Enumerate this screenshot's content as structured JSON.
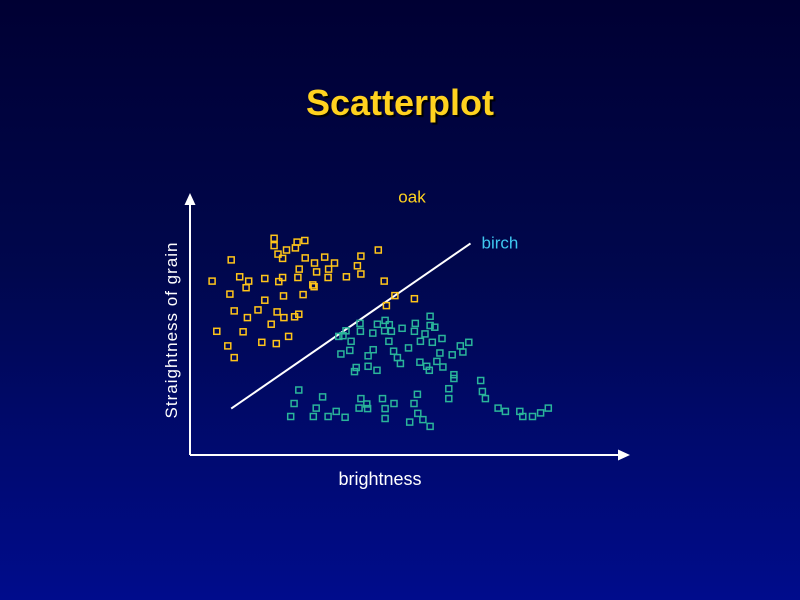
{
  "slide": {
    "title": "Scatterplot"
  },
  "colors": {
    "background_top": "#000033",
    "background_bottom": "#000c8c",
    "title": "#ffd21f",
    "axes": "#ffffff",
    "oak": "#ffc51a",
    "birch": "#2ab59a",
    "oak_label": "#ffd21f",
    "birch_label": "#3fc8f0",
    "divider": "#ffffff"
  },
  "chart_data": {
    "type": "scatter",
    "title": "Scatterplot",
    "xlabel": "brightness",
    "ylabel": "Straightness of grain",
    "axis_ticks": false,
    "grid": false,
    "xlim": [
      0,
      100
    ],
    "ylim": [
      0,
      100
    ],
    "series": [
      {
        "name": "oak",
        "color": "#ffc51a",
        "marker": "square",
        "points": [
          [
            19.8,
            85.0
          ],
          [
            19.8,
            82.1
          ],
          [
            22.7,
            80.4
          ],
          [
            25.2,
            83.5
          ],
          [
            27.0,
            84.1
          ],
          [
            24.8,
            81.2
          ],
          [
            20.7,
            78.8
          ],
          [
            21.8,
            77.1
          ],
          [
            25.7,
            72.9
          ],
          [
            29.3,
            75.3
          ],
          [
            27.1,
            77.3
          ],
          [
            31.7,
            77.6
          ],
          [
            34.0,
            75.3
          ],
          [
            32.6,
            72.9
          ],
          [
            29.8,
            71.8
          ],
          [
            39.4,
            74.2
          ],
          [
            40.2,
            78.0
          ],
          [
            44.3,
            80.4
          ],
          [
            5.2,
            68.2
          ],
          [
            9.7,
            76.5
          ],
          [
            11.7,
            69.9
          ],
          [
            13.8,
            68.2
          ],
          [
            17.6,
            69.2
          ],
          [
            21.8,
            69.6
          ],
          [
            25.4,
            69.6
          ],
          [
            29.2,
            66.0
          ],
          [
            32.5,
            69.6
          ],
          [
            36.8,
            69.9
          ],
          [
            40.2,
            71.0
          ],
          [
            45.7,
            68.2
          ],
          [
            9.4,
            63.1
          ],
          [
            13.2,
            65.6
          ],
          [
            20.9,
            68.0
          ],
          [
            17.6,
            60.7
          ],
          [
            22.0,
            62.4
          ],
          [
            26.6,
            62.9
          ],
          [
            28.9,
            66.7
          ],
          [
            10.4,
            56.5
          ],
          [
            16.0,
            56.9
          ],
          [
            20.5,
            56.1
          ],
          [
            25.6,
            55.2
          ],
          [
            19.1,
            51.3
          ],
          [
            22.1,
            53.9
          ],
          [
            24.6,
            54.2
          ],
          [
            6.3,
            48.5
          ],
          [
            13.5,
            53.9
          ],
          [
            12.5,
            48.3
          ],
          [
            8.9,
            42.8
          ],
          [
            16.9,
            44.2
          ],
          [
            20.3,
            43.7
          ],
          [
            23.2,
            46.5
          ],
          [
            10.4,
            38.2
          ],
          [
            46.2,
            58.6
          ],
          [
            48.2,
            62.5
          ],
          [
            52.8,
            61.3
          ]
        ]
      },
      {
        "name": "birch",
        "color": "#2ab59a",
        "marker": "square",
        "points": [
          [
            35.0,
            46.5
          ],
          [
            40.1,
            48.5
          ],
          [
            43.0,
            47.8
          ],
          [
            45.8,
            48.7
          ],
          [
            52.8,
            48.5
          ],
          [
            55.3,
            47.5
          ],
          [
            56.5,
            50.8
          ],
          [
            54.2,
            44.6
          ],
          [
            57.0,
            44.2
          ],
          [
            59.3,
            45.7
          ],
          [
            57.6,
            50.1
          ],
          [
            56.5,
            54.4
          ],
          [
            53.0,
            51.6
          ],
          [
            40.0,
            51.6
          ],
          [
            44.1,
            51.3
          ],
          [
            45.9,
            52.8
          ],
          [
            46.9,
            51.1
          ],
          [
            47.4,
            48.5
          ],
          [
            49.9,
            49.7
          ],
          [
            46.8,
            44.6
          ],
          [
            36.7,
            48.7
          ],
          [
            36.0,
            46.8
          ],
          [
            37.9,
            44.6
          ],
          [
            35.5,
            39.6
          ],
          [
            37.6,
            41.0
          ],
          [
            43.1,
            41.3
          ],
          [
            41.9,
            38.9
          ],
          [
            47.9,
            40.7
          ],
          [
            48.8,
            38.2
          ],
          [
            51.4,
            42.0
          ],
          [
            54.1,
            36.4
          ],
          [
            41.9,
            34.8
          ],
          [
            38.7,
            32.7
          ],
          [
            39.1,
            34.3
          ],
          [
            44.0,
            33.2
          ],
          [
            49.5,
            35.9
          ],
          [
            55.7,
            34.8
          ],
          [
            58.1,
            36.7
          ],
          [
            59.5,
            34.5
          ],
          [
            58.8,
            40.0
          ],
          [
            61.7,
            39.3
          ],
          [
            64.2,
            40.4
          ],
          [
            65.6,
            44.2
          ],
          [
            63.6,
            42.8
          ],
          [
            56.3,
            33.2
          ],
          [
            62.1,
            31.5
          ],
          [
            60.9,
            26.0
          ],
          [
            62.1,
            30.0
          ],
          [
            68.4,
            29.2
          ],
          [
            68.8,
            24.9
          ],
          [
            69.5,
            22.1
          ],
          [
            72.5,
            18.4
          ],
          [
            74.2,
            17.1
          ],
          [
            78.3,
            15.1
          ],
          [
            77.6,
            17.1
          ],
          [
            80.6,
            15.1
          ],
          [
            82.5,
            16.5
          ],
          [
            84.3,
            18.4
          ],
          [
            60.9,
            22.1
          ],
          [
            53.5,
            23.8
          ],
          [
            52.7,
            20.2
          ],
          [
            48.0,
            20.2
          ],
          [
            45.3,
            22.1
          ],
          [
            45.9,
            18.2
          ],
          [
            45.9,
            14.3
          ],
          [
            41.8,
            18.2
          ],
          [
            40.2,
            22.1
          ],
          [
            41.6,
            20.0
          ],
          [
            39.8,
            18.4
          ],
          [
            36.5,
            14.8
          ],
          [
            34.4,
            17.1
          ],
          [
            32.5,
            15.1
          ],
          [
            24.5,
            20.2
          ],
          [
            23.7,
            15.1
          ],
          [
            29.0,
            15.1
          ],
          [
            29.7,
            18.4
          ],
          [
            31.2,
            22.8
          ],
          [
            25.6,
            25.5
          ],
          [
            53.6,
            16.3
          ],
          [
            56.5,
            11.2
          ],
          [
            51.7,
            12.9
          ],
          [
            54.8,
            13.9
          ]
        ]
      }
    ],
    "annotations": [
      {
        "text": "oak",
        "color": "#ffd21f",
        "x": 49.0,
        "y": 99.0
      },
      {
        "text": "birch",
        "color": "#3fc8f0",
        "x": 68.6,
        "y": 81.0
      }
    ],
    "divider_line": {
      "x1": 9.7,
      "y1": 18.2,
      "x2": 66.0,
      "y2": 83.0
    }
  }
}
